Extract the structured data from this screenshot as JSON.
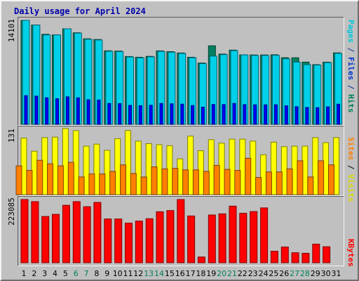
{
  "chart_data": {
    "type": "bar",
    "title": "Daily usage for April 2024",
    "categories": [
      "1",
      "2",
      "3",
      "4",
      "5",
      "6",
      "7",
      "8",
      "9",
      "10",
      "11",
      "12",
      "13",
      "14",
      "15",
      "16",
      "17",
      "18",
      "19",
      "20",
      "21",
      "22",
      "23",
      "24",
      "25",
      "26",
      "27",
      "28",
      "29",
      "30",
      "31"
    ],
    "weekend_days": [
      "6",
      "7",
      "13",
      "14",
      "20",
      "21",
      "27",
      "28"
    ],
    "panels": [
      {
        "id": "hits",
        "ymax_label": "14101",
        "ymax": 14101,
        "side_labels": [
          {
            "text": "Pages",
            "color": "#00c8dc"
          },
          {
            "text": " / ",
            "color": "#003399"
          },
          {
            "text": "Files",
            "color": "#0033cc"
          },
          {
            "text": " / ",
            "color": "#003399"
          },
          {
            "text": "Hits",
            "color": "#00805a"
          }
        ],
        "series": [
          {
            "name": "Hits",
            "color": "#008060",
            "values": [
              14101,
              13475,
              12210,
              12126,
              12962,
              12424,
              11604,
              11511,
              9974,
              9940,
              9208,
              9097,
              9226,
              9968,
              9859,
              9682,
              9100,
              8317,
              10655,
              9537,
              10070,
              9427,
              9415,
              9415,
              9441,
              9038,
              9034,
              8444,
              8101,
              8444,
              9696
            ]
          },
          {
            "name": "Files",
            "color": "#00d0e8",
            "values": [
              14101,
              13475,
              12126,
              12126,
              12962,
              12378,
              11534,
              11440,
              9905,
              9869,
              9138,
              9025,
              9154,
              9897,
              9788,
              9611,
              9029,
              8241,
              9252,
              9465,
              10000,
              9427,
              9345,
              9345,
              9370,
              8888,
              8444,
              8103,
              8043,
              8377,
              9625
            ]
          },
          {
            "name": "Pages",
            "color": "#0000ff",
            "values": [
              3900,
              3826,
              3608,
              3478,
              3736,
              3603,
              3333,
              3306,
              2840,
              2807,
              2570,
              2538,
              2589,
              2829,
              2796,
              2747,
              2557,
              2331,
              2697,
              2684,
              2841,
              2675,
              2652,
              2652,
              2659,
              2519,
              2388,
              2292,
              2272,
              2372,
              2734
            ]
          }
        ]
      },
      {
        "id": "visits",
        "ymax_label": "131",
        "ymax": 131,
        "side_labels": [
          {
            "text": "Sites",
            "color": "#ff8000"
          },
          {
            "text": " / ",
            "color": "#000000"
          },
          {
            "text": "Visits",
            "color": "#dddd00"
          }
        ],
        "series": [
          {
            "name": "Visits",
            "color": "#ffff00",
            "values": [
              112,
              86,
              113,
              114,
              131,
              127,
              96,
              100,
              88,
              111,
              127,
              106,
              101,
              99,
              97,
              71,
              116,
              87,
              109,
              102,
              110,
              110,
              106,
              79,
              104,
              95,
              96,
              96,
              113,
              103,
              113
            ]
          },
          {
            "name": "Sites",
            "color": "#ff8000",
            "values": [
              57,
              48,
              68,
              61,
              57,
              64,
              35,
              41,
              41,
              46,
              59,
              42,
              35,
              55,
              51,
              52,
              49,
              49,
              46,
              58,
              50,
              48,
              72,
              34,
              45,
              45,
              51,
              67,
              35,
              67,
              59
            ]
          }
        ]
      },
      {
        "id": "kbytes",
        "ymax_label": "223085",
        "ymax": 223085,
        "side_labels": [
          {
            "text": "KBytes",
            "color": "#ff0000"
          }
        ],
        "series": [
          {
            "name": "KBytes",
            "color": "#ff0000",
            "values": [
              223085,
              215630,
              163345,
              170796,
              202870,
              215630,
              197860,
              213000,
              154390,
              154390,
              140130,
              146880,
              155390,
              179960,
              184230,
              223085,
              165010,
              20300,
              168490,
              172570,
              199790,
              174610,
              180740,
              193620,
              40740,
              55460,
              35440,
              33390,
              65700,
              56540,
              0
            ]
          }
        ]
      }
    ]
  }
}
